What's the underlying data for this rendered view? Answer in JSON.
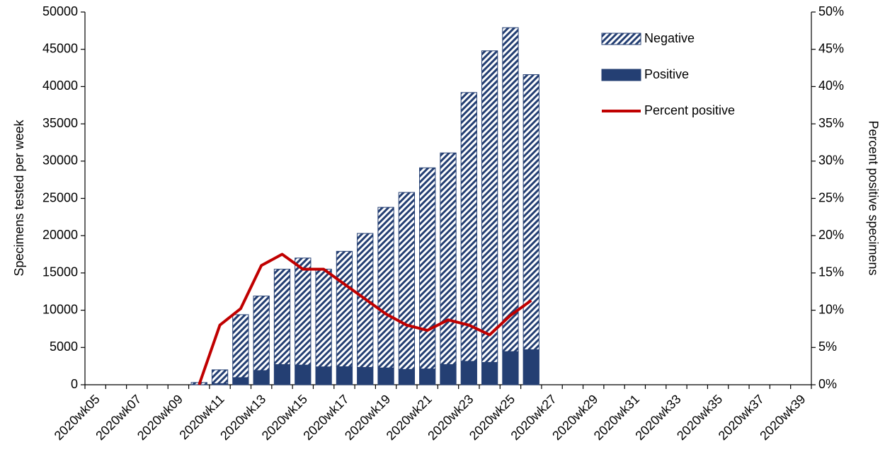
{
  "chart_data": {
    "type": "bar",
    "stacked": true,
    "y_label": "Specimens tested per week",
    "y2_label": "Percent positive specimens",
    "categories": [
      "2020wk05",
      null,
      "2020wk07",
      null,
      "2020wk09",
      null,
      "2020wk11",
      null,
      "2020wk13",
      null,
      "2020wk15",
      null,
      "2020wk17",
      null,
      "2020wk19",
      null,
      "2020wk21",
      null,
      "2020wk23",
      null,
      "2020wk25",
      null,
      "2020wk27",
      null,
      "2020wk29",
      null,
      "2020wk31",
      null,
      "2020wk33",
      null,
      "2020wk35",
      null,
      "2020wk37",
      null,
      "2020wk39"
    ],
    "series": [
      {
        "name": "Positive",
        "type": "bar",
        "color": "#243f73",
        "values": [
          null,
          null,
          null,
          null,
          null,
          10,
          160,
          960,
          1900,
          2710,
          2640,
          2400,
          2420,
          2330,
          2260,
          2060,
          2120,
          2710,
          3140,
          3000,
          4450,
          4700,
          null,
          null,
          null,
          null,
          null,
          null,
          null,
          null,
          null,
          null,
          null,
          null,
          null
        ]
      },
      {
        "name": "Negative",
        "type": "bar",
        "color": "#243f73",
        "hatch": true,
        "values": [
          null,
          null,
          null,
          null,
          null,
          290,
          1840,
          8440,
          10000,
          12790,
          14360,
          13100,
          15480,
          17970,
          21540,
          23740,
          26980,
          28390,
          36060,
          41800,
          43450,
          36900,
          null,
          null,
          null,
          null,
          null,
          null,
          null,
          null,
          null,
          null,
          null,
          null,
          null
        ]
      },
      {
        "name": "Percent positive",
        "type": "line",
        "axis": "y2",
        "color": "#c00000",
        "values": [
          null,
          null,
          null,
          null,
          null,
          0,
          8,
          10.2,
          16,
          17.5,
          15.5,
          15.5,
          13.5,
          11.5,
          9.5,
          8,
          7.3,
          8.7,
          8,
          6.7,
          9.3,
          11.3,
          null,
          null,
          null,
          null,
          null,
          null,
          null,
          null,
          null,
          null,
          null,
          null,
          null
        ]
      }
    ],
    "ylim": [
      0,
      50000
    ],
    "yticks": [
      0,
      5000,
      10000,
      15000,
      20000,
      25000,
      30000,
      35000,
      40000,
      45000,
      50000
    ],
    "y2lim": [
      0,
      50
    ],
    "y2ticks": [
      {
        "value": 0,
        "label": "0%"
      },
      {
        "value": 5,
        "label": "5%"
      },
      {
        "value": 10,
        "label": "10%"
      },
      {
        "value": 15,
        "label": "15%"
      },
      {
        "value": 20,
        "label": "20%"
      },
      {
        "value": 25,
        "label": "25%"
      },
      {
        "value": 30,
        "label": "30%"
      },
      {
        "value": 35,
        "label": "35%"
      },
      {
        "value": 40,
        "label": "40%"
      },
      {
        "value": 45,
        "label": "45%"
      },
      {
        "value": 50,
        "label": "50%"
      }
    ],
    "legend": "top-right",
    "legend_order": [
      1,
      0,
      2
    ],
    "grid": false
  }
}
